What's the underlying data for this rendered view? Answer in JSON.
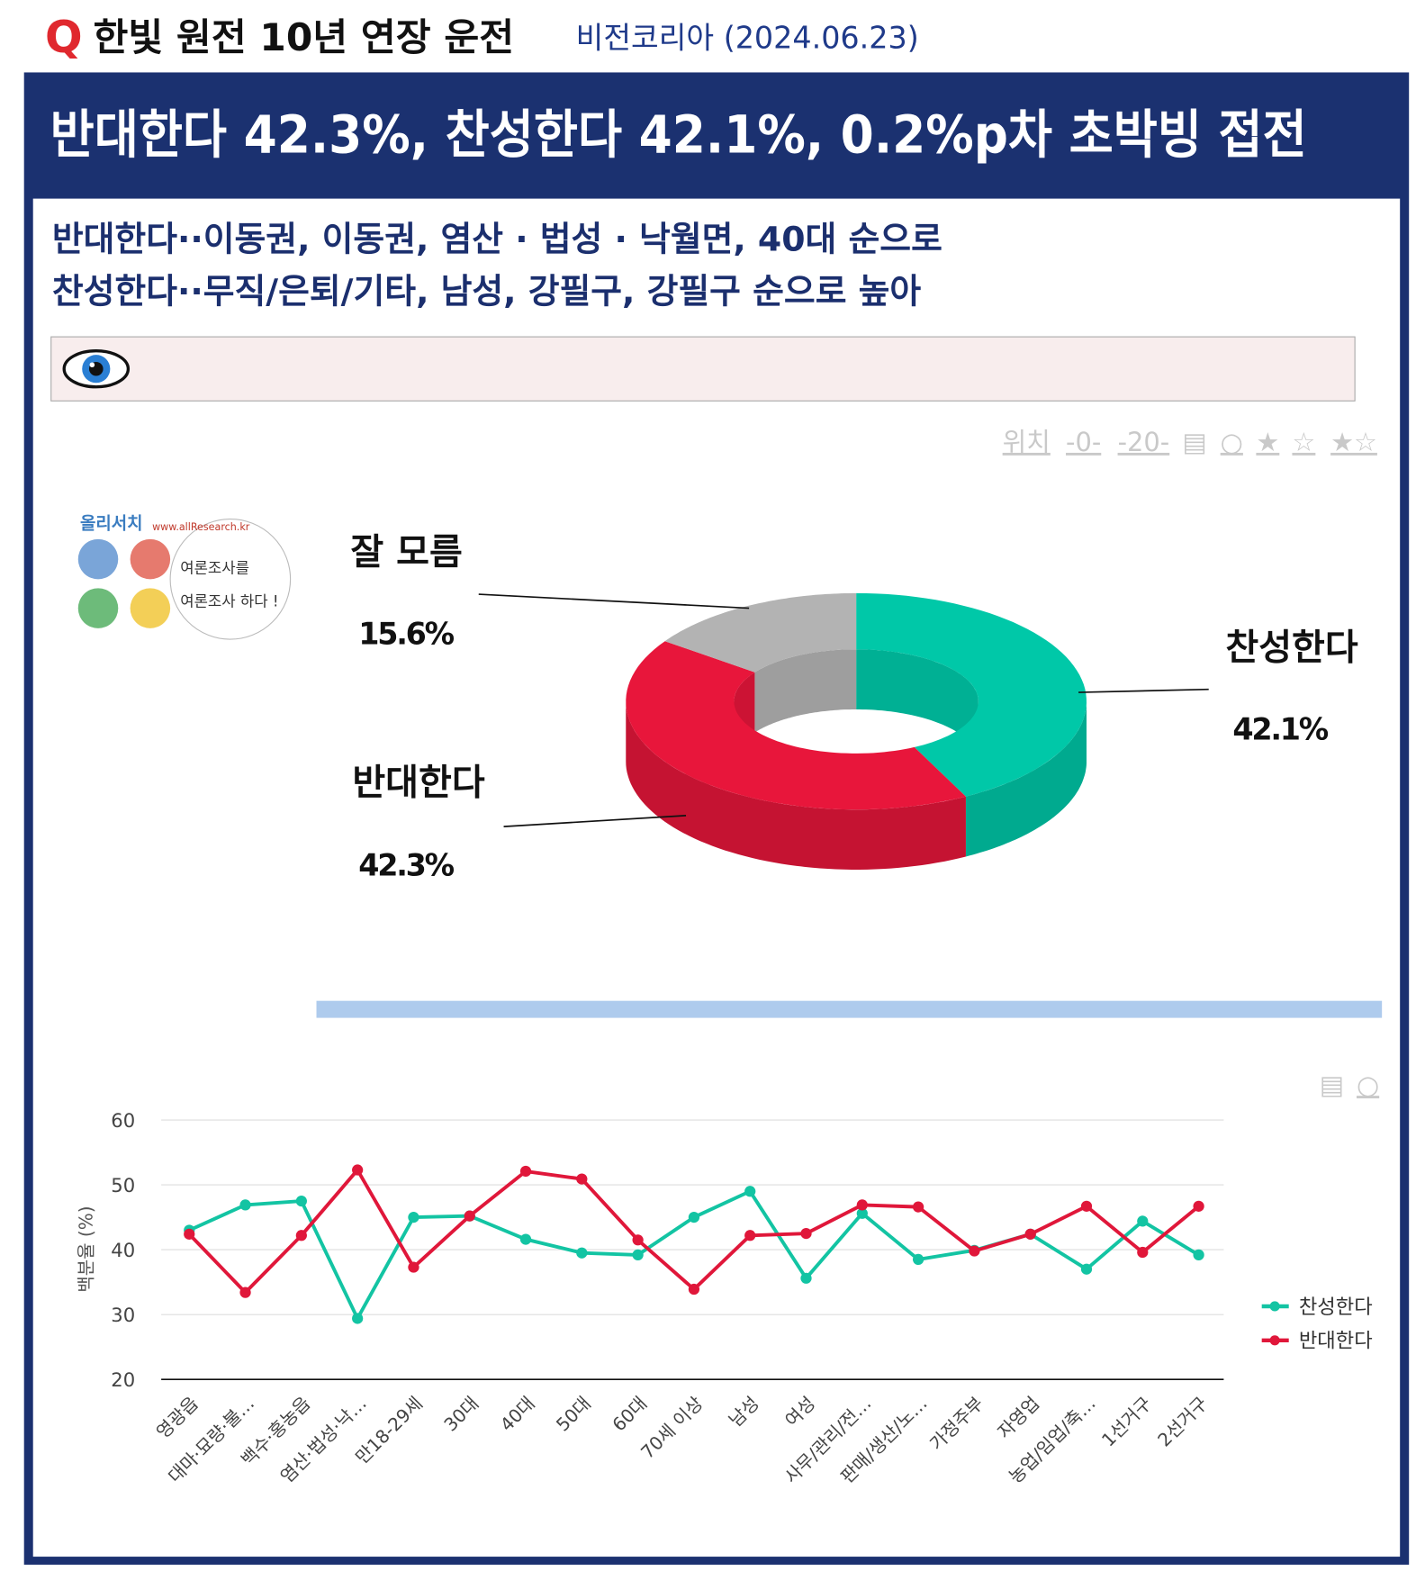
{
  "header": {
    "q": "Q",
    "title": "한빛 원전 10년 연장 운전",
    "source": "비전코리아 (2024.06.23)"
  },
  "headline": "반대한다 42.3%, 찬성한다 42.1%, 0.2%p차 초박빙 접전",
  "summary": [
    "반대한다··이동권, 이동권, 염산 · 법성 · 낙월면, 40대 순으로",
    "찬성한다··무직/은퇴/기타, 남성, 강필구, 강필구 순으로 높아"
  ],
  "toolbar": [
    "위치",
    "-0-",
    "-20-",
    "▤",
    "○",
    "★",
    "☆",
    "★☆"
  ],
  "line_toolbar": [
    "▤",
    "○"
  ],
  "logo": {
    "name": "올리서치",
    "url": "www.allResearch.kr",
    "slogan": [
      "여론조사를",
      "여론조사 하다 !"
    ]
  },
  "chart_data": [
    {
      "type": "donut",
      "categories": [
        "찬성한다",
        "반대한다",
        "잘 모름"
      ],
      "values": [
        42.1,
        42.3,
        15.6
      ],
      "value_labels": [
        "42.1%",
        "42.3%",
        "15.6%"
      ],
      "colors": [
        "#00c8a8",
        "#e8163b",
        "#b3b3b3"
      ]
    },
    {
      "type": "line",
      "y_label": "백분율 (%)",
      "categories": [
        "영광읍",
        "대마·묘량·불…",
        "백수·홍농읍",
        "염산·법성·낙…",
        "만18-29세",
        "30대",
        "40대",
        "50대",
        "60대",
        "70세 이상",
        "남성",
        "여성",
        "사무/관리/전…",
        "판매/생산/노…",
        "가정주부",
        "자영업",
        "농업/임업/축…",
        "1선거구",
        "2선거구"
      ],
      "series": [
        {
          "name": "찬성한다",
          "color": "#13c4a3",
          "values": [
            43.0,
            46.9,
            47.5,
            29.4,
            45.0,
            45.2,
            41.6,
            39.5,
            39.2,
            45.0,
            49.0,
            35.6,
            45.6,
            38.5,
            39.9,
            42.4,
            37.0,
            44.4,
            39.2
          ]
        },
        {
          "name": "반대한다",
          "color": "#e0173a",
          "values": [
            42.4,
            33.4,
            42.2,
            52.3,
            37.3,
            45.2,
            52.1,
            50.9,
            41.5,
            33.9,
            42.2,
            42.5,
            46.9,
            46.6,
            39.8,
            42.4,
            46.7,
            39.6,
            46.7
          ]
        }
      ],
      "ylim": [
        20,
        60
      ],
      "yticks": [
        20,
        30,
        40,
        50,
        60
      ],
      "grid": true,
      "legend": "right"
    }
  ]
}
